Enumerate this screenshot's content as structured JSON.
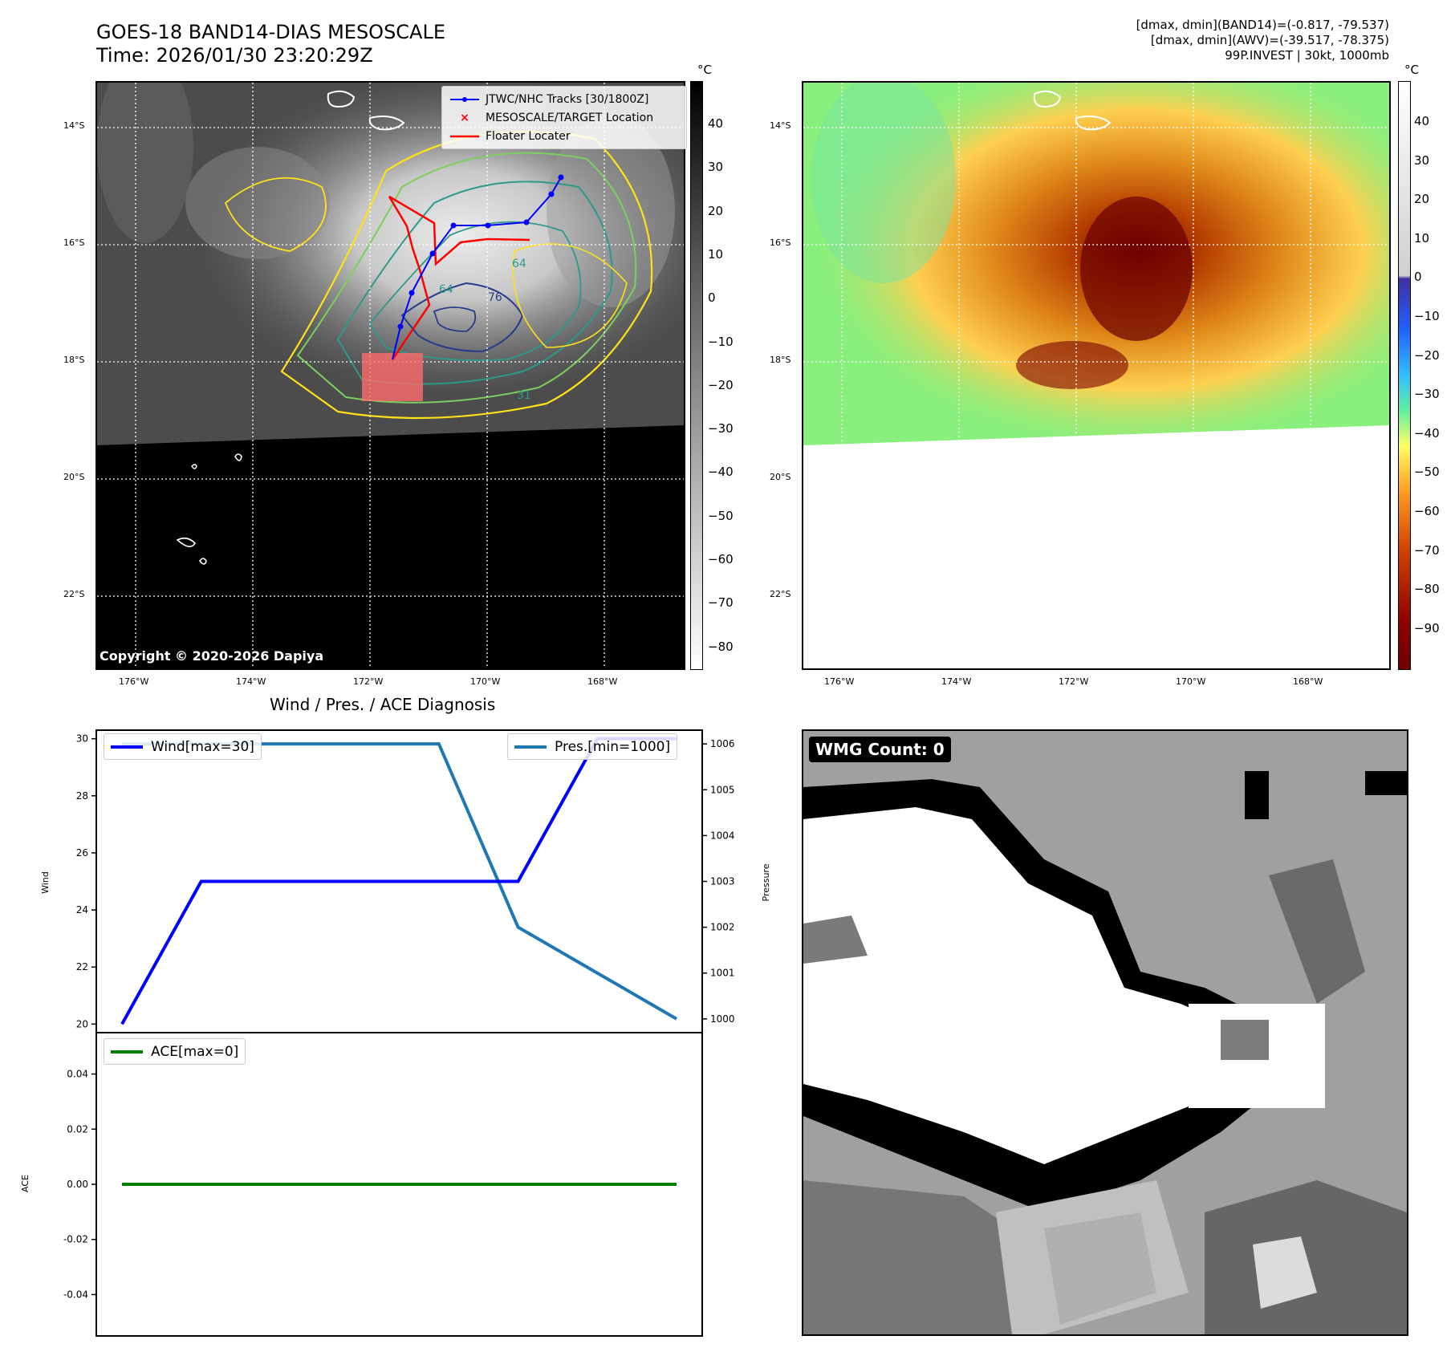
{
  "header": {
    "title_line1": "GOES-18 BAND14-DIAS MESOSCALE",
    "title_line2": "Time: 2026/01/30 23:20:29Z",
    "info_line1": "[dmax, dmin](BAND14)=(-0.817, -79.537)",
    "info_line2": "[dmax, dmin](AWV)=(-39.517, -78.375)",
    "info_line3": "99P.INVEST | 30kt, 1000mb"
  },
  "map_left": {
    "lat_labels": [
      "14°S",
      "16°S",
      "18°S",
      "20°S",
      "22°S"
    ],
    "lon_labels": [
      "176°W",
      "174°W",
      "172°W",
      "170°W",
      "168°W"
    ],
    "colorbar_unit": "°C",
    "colorbar_ticks": [
      "40",
      "30",
      "20",
      "10",
      "0",
      "−10",
      "−20",
      "−30",
      "−40",
      "−50",
      "−60",
      "−70",
      "−80"
    ],
    "legend": [
      "JTWC/NHC Tracks [30/1800Z]",
      "MESOSCALE/TARGET Location",
      "Floater Locater"
    ],
    "contour_labels": [
      "64",
      "76",
      "64",
      "31"
    ],
    "copyright": "Copyright © 2020-2026 Dapiya",
    "colors": {
      "track": "#0000ff",
      "floater": "#ff0000",
      "contour_yellow": "#ffe119",
      "contour_green": "#7ccf5e",
      "contour_teal": "#2a9a8a",
      "contour_navy": "#283c8c"
    }
  },
  "map_right": {
    "lat_labels": [
      "14°S",
      "16°S",
      "18°S",
      "20°S",
      "22°S"
    ],
    "lon_labels": [
      "176°W",
      "174°W",
      "172°W",
      "170°W",
      "168°W"
    ],
    "colorbar_unit": "°C",
    "colorbar_ticks": [
      "40",
      "30",
      "20",
      "10",
      "0",
      "−10",
      "−20",
      "−30",
      "−40",
      "−50",
      "−60",
      "−70",
      "−80",
      "−90"
    ]
  },
  "diagnosis": {
    "subtitle": "Wind / Pres. / ACE Diagnosis",
    "wind_ylabel": "Wind",
    "pressure_ylabel": "Pressure",
    "ace_ylabel": "ACE",
    "wind_legend": "Wind[max=30]",
    "pressure_legend": "Pres.[min=1000]",
    "ace_legend": "ACE[max=0]"
  },
  "wmg": {
    "label": "WMG Count: 0"
  },
  "chart_data": [
    {
      "type": "line",
      "title": "Wind / Pres. / ACE Diagnosis",
      "x": [
        0,
        1,
        2,
        3,
        4,
        5,
        6,
        7
      ],
      "series": [
        {
          "name": "Wind[max=30]",
          "axis": "Wind",
          "values": [
            20,
            25,
            25,
            25,
            25,
            25,
            30,
            30
          ],
          "color": "#0000ff"
        },
        {
          "name": "Pres.[min=1000]",
          "axis": "Pressure",
          "values": [
            1006,
            1006,
            1006,
            1006,
            1006,
            1002,
            1001,
            1000
          ],
          "color": "#1f77b4"
        }
      ],
      "ylabel": "Wind",
      "ylim": [
        19.7,
        30.3
      ],
      "y_ticks": [
        20,
        22,
        24,
        26,
        28,
        30
      ],
      "y2label": "Pressure",
      "y2lim": [
        999.7,
        1006.3
      ],
      "y2_ticks": [
        1000,
        1001,
        1002,
        1003,
        1004,
        1005,
        1006
      ],
      "grid": false,
      "legend": [
        "top-left",
        "top-right"
      ]
    },
    {
      "type": "line",
      "x": [
        0,
        1,
        2,
        3,
        4,
        5,
        6,
        7
      ],
      "series": [
        {
          "name": "ACE[max=0]",
          "values": [
            0,
            0,
            0,
            0,
            0,
            0,
            0,
            0
          ],
          "color": "#008000"
        }
      ],
      "ylabel": "ACE",
      "ylim": [
        -0.055,
        0.055
      ],
      "y_ticks": [
        0.04,
        0.02,
        0.0,
        -0.02,
        -0.04
      ],
      "grid": false,
      "legend": "top-left"
    }
  ]
}
